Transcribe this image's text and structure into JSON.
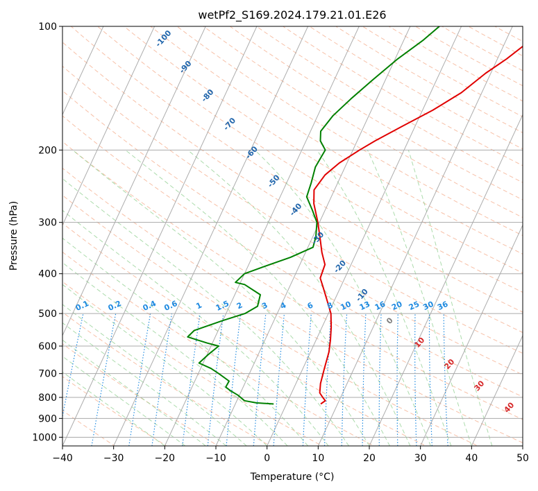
{
  "chart_data": {
    "type": "line",
    "subtype": "skew-T log-P diagram",
    "title": "wetPf2_S169.2024.179.21.01.E26",
    "xlabel": "Temperature (°C)",
    "ylabel": "Pressure (hPa)",
    "xlim": [
      -40,
      50
    ],
    "ylim": [
      1050,
      100
    ],
    "yscale": "log",
    "x_ticks": [
      "−40",
      "−30",
      "−20",
      "−10",
      "0",
      "10",
      "20",
      "30",
      "40",
      "50"
    ],
    "y_ticks": [
      "100",
      "200",
      "300",
      "400",
      "500",
      "600",
      "700",
      "800",
      "900",
      "1000"
    ],
    "grid": true,
    "colors": {
      "temperature": "#e00000",
      "dewpoint": "#008000",
      "dry_adiabat": "#f4a582",
      "moist_adiabat": "#8fcf8f",
      "mixing_ratio": "#1f8ae0",
      "isotherm": "#9e9e9e",
      "dry_label": "#2166ac",
      "moist_label": "#d62728"
    },
    "series": [
      {
        "name": "",
        "role": "temperature",
        "points": [
          [
            6.7,
            830
          ],
          [
            7.3,
            815
          ],
          [
            6.5,
            800
          ],
          [
            5.5,
            780
          ],
          [
            4.8,
            740
          ],
          [
            4.2,
            680
          ],
          [
            3.6,
            620
          ],
          [
            2.8,
            580
          ],
          [
            1.8,
            540
          ],
          [
            0.5,
            500
          ],
          [
            -1.7,
            460
          ],
          [
            -3.5,
            430
          ],
          [
            -4.8,
            410
          ],
          [
            -5.1,
            380
          ],
          [
            -6.8,
            355
          ],
          [
            -8.3,
            330
          ],
          [
            -10.3,
            300
          ],
          [
            -12.8,
            270
          ],
          [
            -14.0,
            250
          ],
          [
            -13.2,
            230
          ],
          [
            -11.5,
            215
          ],
          [
            -8.7,
            200
          ],
          [
            -6.5,
            190
          ],
          [
            -2.5,
            175
          ],
          [
            2.0,
            160
          ],
          [
            6.0,
            145
          ],
          [
            9.0,
            130
          ],
          [
            11.8,
            120
          ],
          [
            14.3,
            110
          ],
          [
            16.3,
            100
          ]
        ]
      },
      {
        "name": "",
        "role": "dewpoint",
        "points": [
          [
            -2.5,
            830
          ],
          [
            -6.0,
            825
          ],
          [
            -8.5,
            815
          ],
          [
            -10.3,
            790
          ],
          [
            -12.2,
            770
          ],
          [
            -13.4,
            755
          ],
          [
            -13.3,
            730
          ],
          [
            -16.0,
            700
          ],
          [
            -18.0,
            680
          ],
          [
            -20.8,
            660
          ],
          [
            -19.8,
            630
          ],
          [
            -18.5,
            600
          ],
          [
            -21.0,
            590
          ],
          [
            -25.4,
            570
          ],
          [
            -24.7,
            550
          ],
          [
            -20.0,
            520
          ],
          [
            -16.3,
            500
          ],
          [
            -14.5,
            480
          ],
          [
            -15.0,
            450
          ],
          [
            -19.0,
            425
          ],
          [
            -21.0,
            420
          ],
          [
            -20.0,
            400
          ],
          [
            -17.0,
            385
          ],
          [
            -12.5,
            365
          ],
          [
            -9.0,
            345
          ],
          [
            -9.4,
            325
          ],
          [
            -10.5,
            300
          ],
          [
            -12.5,
            280
          ],
          [
            -14.8,
            260
          ],
          [
            -15.2,
            240
          ],
          [
            -15.8,
            220
          ],
          [
            -15.4,
            200
          ],
          [
            -17.2,
            190
          ],
          [
            -18.0,
            180
          ],
          [
            -17.0,
            165
          ],
          [
            -15.0,
            150
          ],
          [
            -12.5,
            135
          ],
          [
            -9.5,
            120
          ],
          [
            -6.2,
            108
          ],
          [
            -4.3,
            100
          ]
        ]
      }
    ],
    "dry_adiabat_labels": [
      "-100",
      "-90",
      "-80",
      "-70",
      "-60",
      "-50",
      "-40",
      "-30",
      "-20",
      "-10"
    ],
    "moist_adiabat_labels": [
      "0",
      "10",
      "20",
      "30",
      "40"
    ],
    "mixing_ratio_labels": [
      "0.1",
      "0.2",
      "0.4",
      "0.6",
      "1",
      "1.5",
      "2",
      "3",
      "4",
      "6",
      "8",
      "10",
      "13",
      "16",
      "20",
      "25",
      "30",
      "36"
    ]
  }
}
